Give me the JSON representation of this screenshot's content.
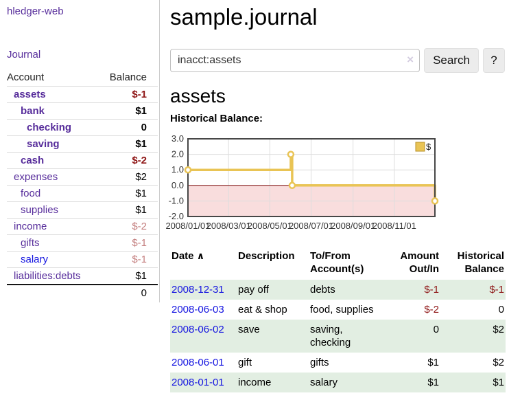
{
  "app": {
    "brand": "hledger-web",
    "nav": {
      "journal": "Journal"
    }
  },
  "sidebar": {
    "columns": {
      "account": "Account",
      "balance": "Balance"
    },
    "accounts": [
      {
        "name": "assets",
        "balance": "$-1"
      },
      {
        "name": "bank",
        "balance": "$1"
      },
      {
        "name": "checking",
        "balance": "0"
      },
      {
        "name": "saving",
        "balance": "$1"
      },
      {
        "name": "cash",
        "balance": "$-2"
      },
      {
        "name": "expenses",
        "balance": "$2"
      },
      {
        "name": "food",
        "balance": "$1"
      },
      {
        "name": "supplies",
        "balance": "$1"
      },
      {
        "name": "income",
        "balance": "$-2"
      },
      {
        "name": "gifts",
        "balance": "$-1"
      },
      {
        "name": "salary",
        "balance": "$-1"
      },
      {
        "name": "liabilities:debts",
        "balance": "$1"
      }
    ],
    "total": "0"
  },
  "header": {
    "title": "sample.journal"
  },
  "search": {
    "value": "inacct:assets",
    "clear_icon": "×",
    "button_label": "Search",
    "help_label": "?"
  },
  "account_page": {
    "heading": "assets",
    "chart_title": "Historical Balance:"
  },
  "chart_data": {
    "type": "line",
    "step": true,
    "title": "Historical Balance:",
    "legend": {
      "label": "$",
      "position": "top-right"
    },
    "series": [
      {
        "name": "$",
        "color": "#e9c455",
        "points": [
          {
            "x": "2008-01-01",
            "y": 1
          },
          {
            "x": "2008-06-01",
            "y": 2
          },
          {
            "x": "2008-06-03",
            "y": 0
          },
          {
            "x": "2008-12-31",
            "y": -1
          }
        ]
      }
    ],
    "ylim": [
      -2,
      3
    ],
    "yticks": [
      "3.0",
      "2.0",
      "1.0",
      "0.0",
      "-1.0",
      "-2.0"
    ],
    "xticks": [
      "2008/01/01",
      "2008/03/01",
      "2008/05/01",
      "2008/07/01",
      "2008/09/01",
      "2008/11/01"
    ],
    "x_domain": [
      "2008-01-01",
      "2008-12-31"
    ],
    "grid": true,
    "zero_line_color": "#7c0f0f",
    "negative_region_fill": "#f9dddd",
    "border_color": "#474747"
  },
  "register": {
    "headers": {
      "date": "Date",
      "sort_indicator": "∧",
      "description": "Description",
      "accounts": "To/From Account(s)",
      "amount": "Amount Out/In",
      "balance": "Historical Balance"
    },
    "rows": [
      {
        "date": "2008-12-31",
        "description": "pay off",
        "accounts": "debts",
        "amount": "$-1",
        "balance": "$-1"
      },
      {
        "date": "2008-06-03",
        "description": "eat & shop",
        "accounts": "food, supplies",
        "amount": "$-2",
        "balance": "0"
      },
      {
        "date": "2008-06-02",
        "description": "save",
        "accounts": "saving, checking",
        "amount": "0",
        "balance": "$2"
      },
      {
        "date": "2008-06-01",
        "description": "gift",
        "accounts": "gifts",
        "amount": "$1",
        "balance": "$2"
      },
      {
        "date": "2008-01-01",
        "description": "income",
        "accounts": "salary",
        "amount": "$1",
        "balance": "$1"
      }
    ]
  },
  "colors": {
    "accent_purple": "#572d9b",
    "link_blue": "#1414e0",
    "negative": "#8e1515",
    "negative_faded": "#c47f7f",
    "row_stripe": "#e2eee2",
    "chart_line": "#e9c455"
  }
}
